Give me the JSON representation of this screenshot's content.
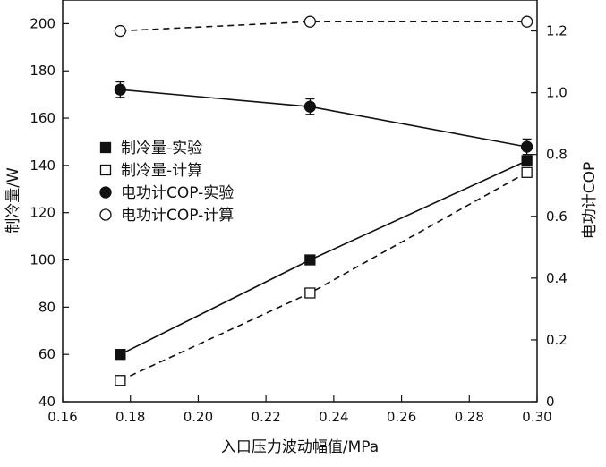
{
  "chart_data": {
    "type": "line",
    "xlabel": "入口压力波动幅值/MPa",
    "ylabel_left": "制冷量/W",
    "ylabel_right": "电功计COP",
    "xlim": [
      0.16,
      0.3
    ],
    "ylim_left": [
      40,
      210
    ],
    "ylim_right": [
      0,
      1.3
    ],
    "x_ticks": [
      "0.16",
      "0.18",
      "0.20",
      "0.22",
      "0.24",
      "0.26",
      "0.28",
      "0.30"
    ],
    "y_left_ticks": [
      "40",
      "60",
      "80",
      "100",
      "120",
      "140",
      "160",
      "180",
      "200"
    ],
    "y_right_ticks": [
      "0",
      "0.2",
      "0.4",
      "0.6",
      "0.8",
      "1.0",
      "1.2"
    ],
    "grid": false,
    "legend_position": "middle-left",
    "series": [
      {
        "name": "制冷量-实验",
        "axis": "left",
        "marker": "filled-square",
        "line": "solid",
        "x": [
          0.177,
          0.233,
          0.297
        ],
        "y": [
          60,
          100,
          142
        ]
      },
      {
        "name": "制冷量-计算",
        "axis": "left",
        "marker": "open-square",
        "line": "dashed",
        "x": [
          0.177,
          0.233,
          0.297
        ],
        "y": [
          49,
          86,
          137
        ]
      },
      {
        "name": "电功计COP-实验",
        "axis": "right",
        "marker": "filled-circle",
        "line": "solid",
        "errorbars": true,
        "x": [
          0.177,
          0.233,
          0.297
        ],
        "y": [
          1.01,
          0.955,
          0.825
        ],
        "err": [
          0.025,
          0.025,
          0.025
        ]
      },
      {
        "name": "电功计COP-计算",
        "axis": "right",
        "marker": "open-circle",
        "line": "dashed",
        "x": [
          0.177,
          0.233,
          0.297
        ],
        "y": [
          1.2,
          1.23,
          1.23
        ]
      }
    ]
  }
}
